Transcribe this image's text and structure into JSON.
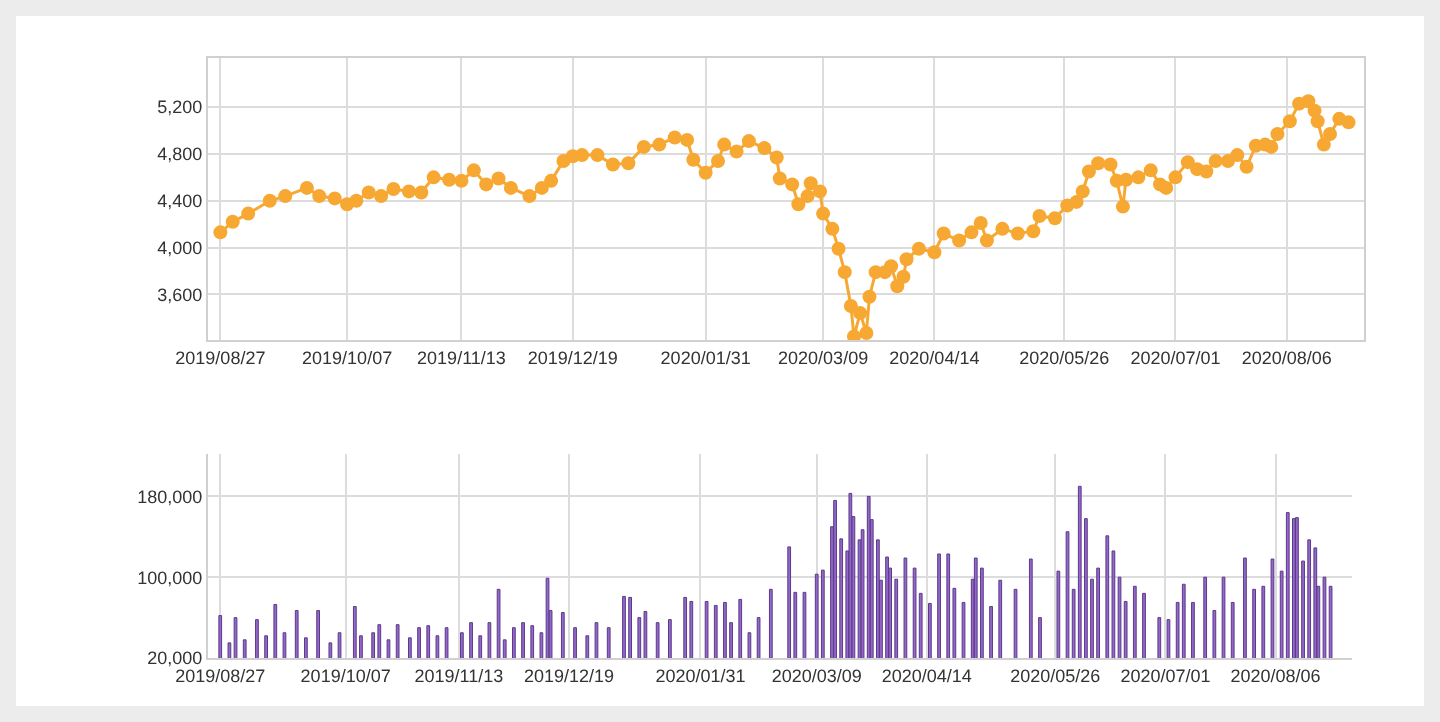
{
  "chart_data": [
    {
      "type": "line",
      "marker": "circle",
      "grid": true,
      "legend": false,
      "x": [
        "2019-08-27",
        "2019-08-31",
        "2019-09-05",
        "2019-09-12",
        "2019-09-17",
        "2019-09-24",
        "2019-09-28",
        "2019-10-03",
        "2019-10-07",
        "2019-10-10",
        "2019-10-14",
        "2019-10-18",
        "2019-10-22",
        "2019-10-27",
        "2019-10-31",
        "2019-11-04",
        "2019-11-09",
        "2019-11-13",
        "2019-11-17",
        "2019-11-21",
        "2019-11-25",
        "2019-11-29",
        "2019-12-05",
        "2019-12-09",
        "2019-12-12",
        "2019-12-16",
        "2019-12-19",
        "2019-12-22",
        "2019-12-27",
        "2020-01-01",
        "2020-01-06",
        "2020-01-11",
        "2020-01-16",
        "2020-01-21",
        "2020-01-25",
        "2020-01-27",
        "2020-01-31",
        "2020-02-04",
        "2020-02-06",
        "2020-02-10",
        "2020-02-14",
        "2020-02-19",
        "2020-02-23",
        "2020-02-24",
        "2020-02-28",
        "2020-03-01",
        "2020-03-04",
        "2020-03-05",
        "2020-03-08",
        "2020-03-09",
        "2020-03-12",
        "2020-03-14",
        "2020-03-16",
        "2020-03-18",
        "2020-03-19",
        "2020-03-21",
        "2020-03-23",
        "2020-03-24",
        "2020-03-26",
        "2020-03-29",
        "2020-03-31",
        "2020-04-02",
        "2020-04-04",
        "2020-04-05",
        "2020-04-09",
        "2020-04-14",
        "2020-04-17",
        "2020-04-22",
        "2020-04-26",
        "2020-04-29",
        "2020-05-01",
        "2020-05-06",
        "2020-05-11",
        "2020-05-16",
        "2020-05-18",
        "2020-05-23",
        "2020-05-27",
        "2020-05-30",
        "2020-06-01",
        "2020-06-03",
        "2020-06-06",
        "2020-06-10",
        "2020-06-12",
        "2020-06-14",
        "2020-06-15",
        "2020-06-19",
        "2020-06-23",
        "2020-06-26",
        "2020-06-28",
        "2020-07-01",
        "2020-07-05",
        "2020-07-08",
        "2020-07-11",
        "2020-07-14",
        "2020-07-18",
        "2020-07-21",
        "2020-07-24",
        "2020-07-27",
        "2020-07-30",
        "2020-08-01",
        "2020-08-03",
        "2020-08-07",
        "2020-08-10",
        "2020-08-13",
        "2020-08-15",
        "2020-08-16",
        "2020-08-18",
        "2020-08-20",
        "2020-08-23",
        "2020-08-26"
      ],
      "series": [
        {
          "color": "#f7a833",
          "values": [
            4130,
            4220,
            4290,
            4400,
            4440,
            4510,
            4440,
            4420,
            4370,
            4400,
            4470,
            4440,
            4500,
            4480,
            4470,
            4600,
            4580,
            4570,
            4660,
            4540,
            4590,
            4510,
            4440,
            4510,
            4570,
            4740,
            4780,
            4790,
            4790,
            4710,
            4720,
            4860,
            4880,
            4940,
            4920,
            4750,
            4640,
            4740,
            4880,
            4820,
            4910,
            4850,
            4770,
            4590,
            4540,
            4370,
            4440,
            4550,
            4480,
            4290,
            4160,
            3990,
            3790,
            3500,
            3240,
            3440,
            3270,
            3580,
            3790,
            3790,
            3840,
            3670,
            3750,
            3900,
            3990,
            3960,
            4120,
            4060,
            4130,
            4210,
            4060,
            4160,
            4120,
            4140,
            4270,
            4250,
            4360,
            4390,
            4480,
            4650,
            4720,
            4710,
            4570,
            4350,
            4580,
            4600,
            4660,
            4540,
            4510,
            4600,
            4730,
            4670,
            4650,
            4740,
            4740,
            4790,
            4690,
            4870,
            4880,
            4860,
            4970,
            5080,
            5230,
            5250,
            5170,
            5080,
            4880,
            4970,
            5100,
            5070
          ]
        }
      ],
      "xlim": [
        "2019-08-23",
        "2020-08-31"
      ],
      "xticks": [
        {
          "value": "2019-08-27",
          "label": "2019/08/27"
        },
        {
          "value": "2019-10-07",
          "label": "2019/10/07"
        },
        {
          "value": "2019-11-13",
          "label": "2019/11/13"
        },
        {
          "value": "2019-12-19",
          "label": "2019/12/19"
        },
        {
          "value": "2020-01-31",
          "label": "2020/01/31"
        },
        {
          "value": "2020-03-09",
          "label": "2020/03/09"
        },
        {
          "value": "2020-04-14",
          "label": "2020/04/14"
        },
        {
          "value": "2020-05-26",
          "label": "2020/05/26"
        },
        {
          "value": "2020-07-01",
          "label": "2020/07/01"
        },
        {
          "value": "2020-08-06",
          "label": "2020/08/06"
        }
      ],
      "ylim": [
        3210,
        5620
      ],
      "yticks": [
        {
          "value": 3600,
          "label": "3,600"
        },
        {
          "value": 4000,
          "label": "4,000"
        },
        {
          "value": 4400,
          "label": "4,400"
        },
        {
          "value": 4800,
          "label": "4,800"
        },
        {
          "value": 5200,
          "label": "5,200"
        }
      ]
    },
    {
      "type": "bar",
      "grid": true,
      "legend": false,
      "x": [
        "2019-08-27",
        "2019-08-30",
        "2019-09-01",
        "2019-09-04",
        "2019-09-08",
        "2019-09-11",
        "2019-09-14",
        "2019-09-17",
        "2019-09-21",
        "2019-09-24",
        "2019-09-28",
        "2019-10-02",
        "2019-10-05",
        "2019-10-10",
        "2019-10-12",
        "2019-10-16",
        "2019-10-18",
        "2019-10-21",
        "2019-10-24",
        "2019-10-28",
        "2019-10-31",
        "2019-11-03",
        "2019-11-06",
        "2019-11-09",
        "2019-11-14",
        "2019-11-17",
        "2019-11-20",
        "2019-11-23",
        "2019-11-26",
        "2019-11-28",
        "2019-12-01",
        "2019-12-04",
        "2019-12-07",
        "2019-12-10",
        "2019-12-12",
        "2019-12-13",
        "2019-12-17",
        "2019-12-21",
        "2019-12-25",
        "2019-12-28",
        "2020-01-01",
        "2020-01-06",
        "2020-01-08",
        "2020-01-11",
        "2020-01-13",
        "2020-01-17",
        "2020-01-21",
        "2020-01-26",
        "2020-01-28",
        "2020-02-02",
        "2020-02-05",
        "2020-02-08",
        "2020-02-10",
        "2020-02-13",
        "2020-02-16",
        "2020-02-19",
        "2020-02-23",
        "2020-02-29",
        "2020-03-02",
        "2020-03-05",
        "2020-03-09",
        "2020-03-11",
        "2020-03-14",
        "2020-03-15",
        "2020-03-17",
        "2020-03-19",
        "2020-03-20",
        "2020-03-21",
        "2020-03-23",
        "2020-03-24",
        "2020-03-26",
        "2020-03-27",
        "2020-03-29",
        "2020-03-30",
        "2020-04-01",
        "2020-04-02",
        "2020-04-04",
        "2020-04-07",
        "2020-04-10",
        "2020-04-12",
        "2020-04-15",
        "2020-04-18",
        "2020-04-21",
        "2020-04-23",
        "2020-04-26",
        "2020-04-29",
        "2020-04-30",
        "2020-05-02",
        "2020-05-05",
        "2020-05-08",
        "2020-05-13",
        "2020-05-18",
        "2020-05-21",
        "2020-05-27",
        "2020-05-30",
        "2020-06-01",
        "2020-06-03",
        "2020-06-05",
        "2020-06-07",
        "2020-06-09",
        "2020-06-12",
        "2020-06-14",
        "2020-06-16",
        "2020-06-18",
        "2020-06-21",
        "2020-06-24",
        "2020-06-29",
        "2020-07-02",
        "2020-07-05",
        "2020-07-07",
        "2020-07-10",
        "2020-07-14",
        "2020-07-17",
        "2020-07-20",
        "2020-07-23",
        "2020-07-27",
        "2020-07-30",
        "2020-08-02",
        "2020-08-05",
        "2020-08-08",
        "2020-08-10",
        "2020-08-12",
        "2020-08-13",
        "2020-08-15",
        "2020-08-17",
        "2020-08-19",
        "2020-08-20",
        "2020-08-22",
        "2020-08-24"
      ],
      "series": [
        {
          "color": "#9467c8",
          "values": [
            62000,
            35000,
            60000,
            38000,
            58000,
            42000,
            73000,
            45000,
            67000,
            40000,
            67000,
            35000,
            45000,
            71000,
            42000,
            45000,
            53000,
            38000,
            53000,
            40000,
            50000,
            52000,
            42000,
            50000,
            45000,
            55000,
            42000,
            55000,
            88000,
            38000,
            50000,
            55000,
            52000,
            45000,
            99000,
            67000,
            65000,
            50000,
            42000,
            55000,
            50000,
            81000,
            80000,
            60000,
            66000,
            55000,
            58000,
            80000,
            76000,
            76000,
            72000,
            75000,
            55000,
            78000,
            45000,
            60000,
            88000,
            130000,
            85000,
            85000,
            103000,
            107000,
            150000,
            176000,
            138000,
            126000,
            183000,
            160000,
            137000,
            147000,
            180000,
            157000,
            137000,
            97000,
            120000,
            109000,
            98000,
            119000,
            109000,
            84000,
            74000,
            123000,
            123000,
            89000,
            75000,
            98000,
            119000,
            109000,
            71000,
            97000,
            88000,
            118000,
            60000,
            106000,
            145000,
            88000,
            190000,
            158000,
            98000,
            109000,
            141000,
            126000,
            100000,
            76000,
            91000,
            84000,
            60000,
            58000,
            75000,
            93000,
            75000,
            100000,
            67000,
            100000,
            75000,
            119000,
            88000,
            91000,
            118000,
            106000,
            164000,
            158000,
            159000,
            116000,
            137000,
            129000,
            91000,
            100000,
            91000
          ]
        }
      ],
      "xlim": [
        "2019-08-23",
        "2020-08-31"
      ],
      "xticks": [
        {
          "value": "2019-08-27",
          "label": "2019/08/27"
        },
        {
          "value": "2019-10-07",
          "label": "2019/10/07"
        },
        {
          "value": "2019-11-13",
          "label": "2019/11/13"
        },
        {
          "value": "2019-12-19",
          "label": "2019/12/19"
        },
        {
          "value": "2020-01-31",
          "label": "2020/01/31"
        },
        {
          "value": "2020-03-09",
          "label": "2020/03/09"
        },
        {
          "value": "2020-04-14",
          "label": "2020/04/14"
        },
        {
          "value": "2020-05-26",
          "label": "2020/05/26"
        },
        {
          "value": "2020-07-01",
          "label": "2020/07/01"
        },
        {
          "value": "2020-08-06",
          "label": "2020/08/06"
        }
      ],
      "ylim": [
        20000,
        222000
      ],
      "yticks": [
        {
          "value": 20000,
          "label": "20,000"
        },
        {
          "value": 100000,
          "label": "100,000"
        },
        {
          "value": 180000,
          "label": "180,000"
        }
      ]
    }
  ]
}
